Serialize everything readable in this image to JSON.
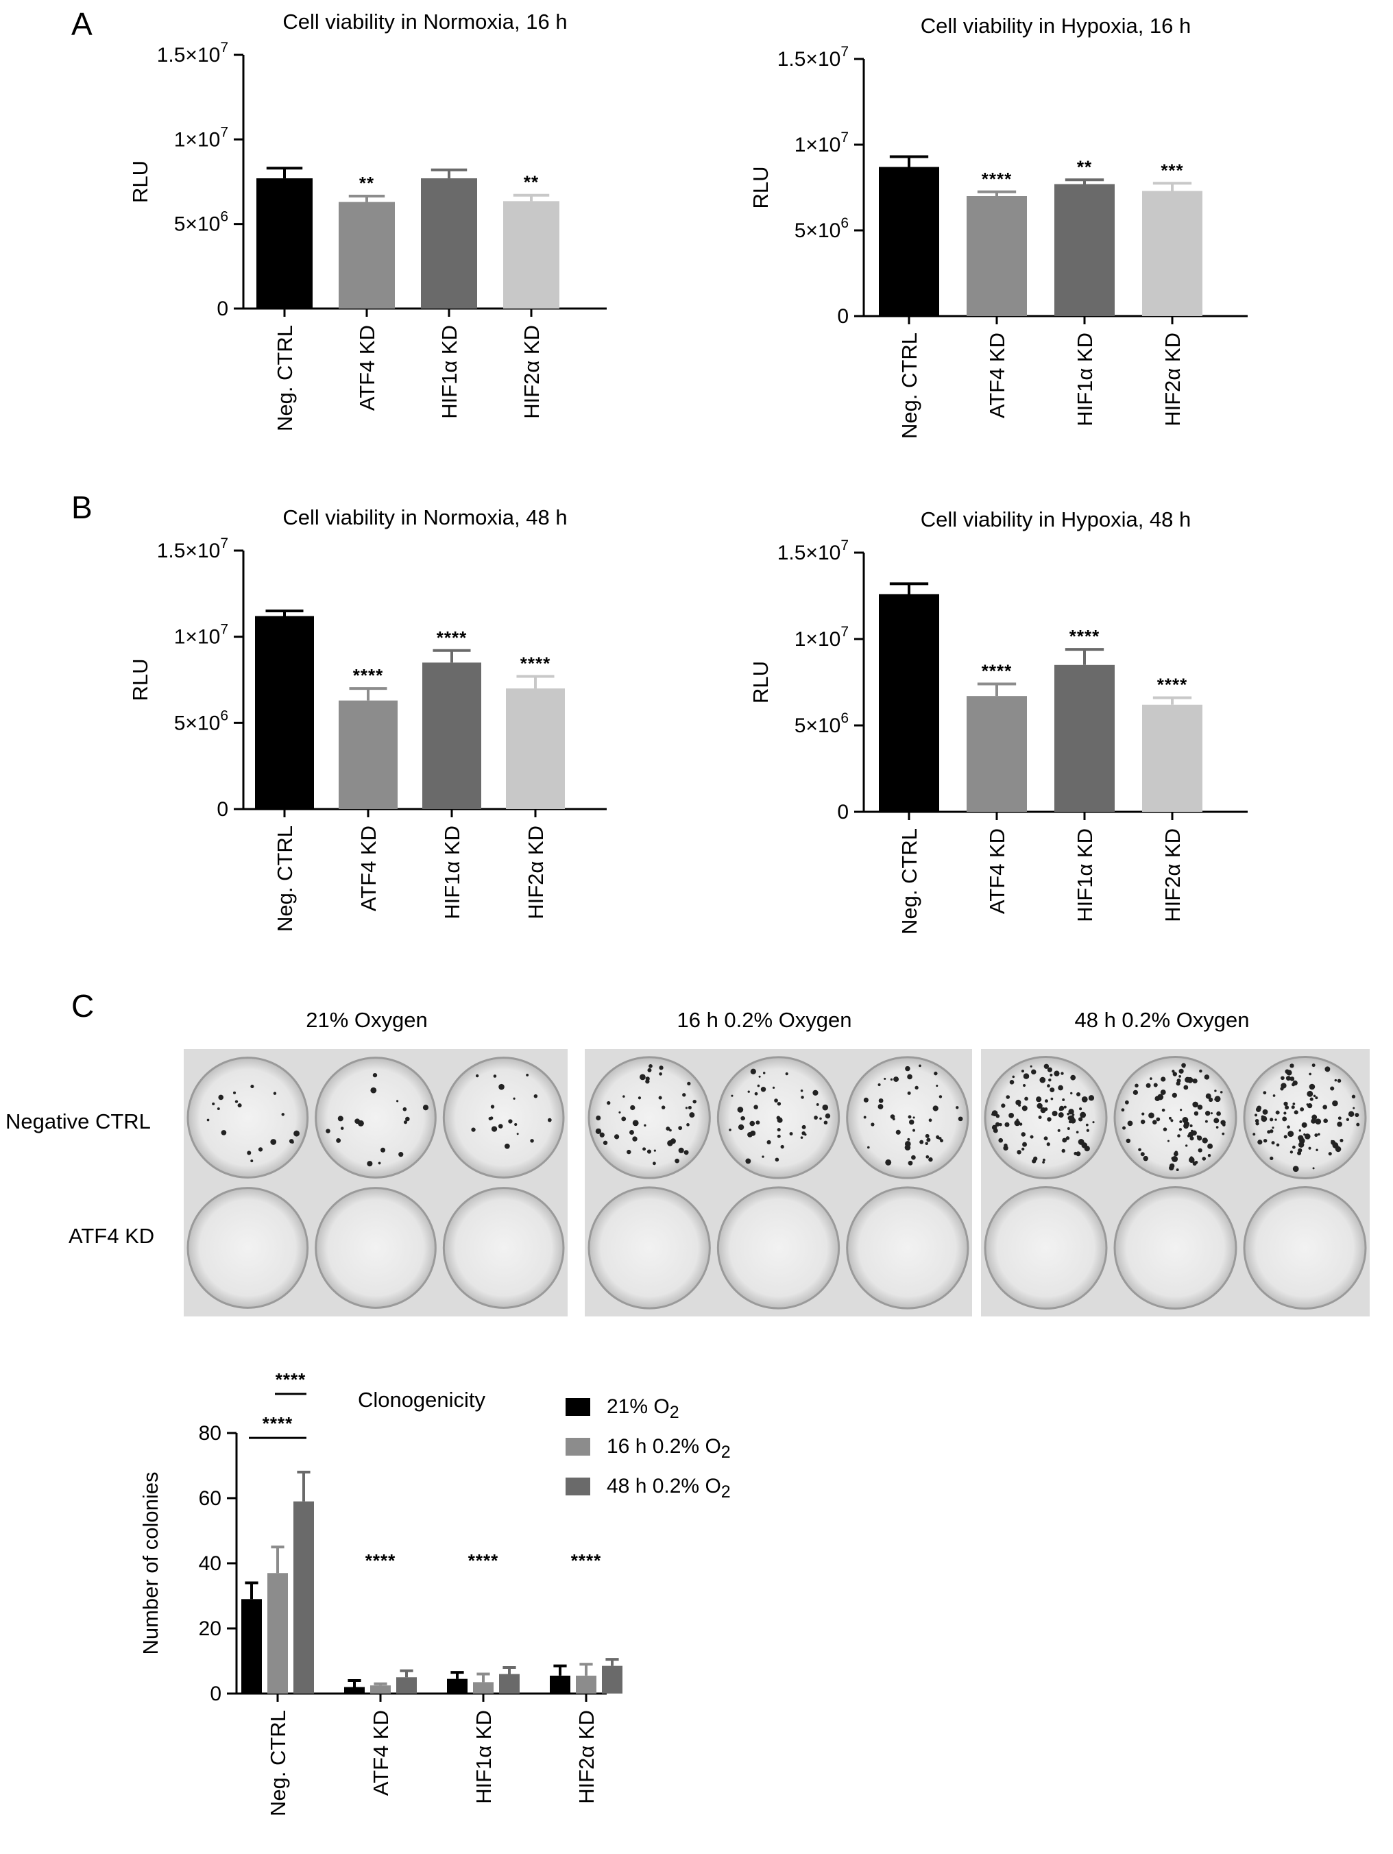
{
  "panels": {
    "A": "A",
    "B": "B",
    "C": "C"
  },
  "chart_data": [
    {
      "id": "a-normoxia",
      "type": "bar",
      "title": "Cell viability in Normoxia, 16 h",
      "ylabel": "RLU",
      "xlabel": "",
      "ylim": [
        0,
        15000000
      ],
      "yticks": [
        {
          "v": 0,
          "base": "0",
          "exp": ""
        },
        {
          "v": 5000000,
          "base": "5×10",
          "exp": "6"
        },
        {
          "v": 10000000,
          "base": "1×10",
          "exp": "7"
        },
        {
          "v": 15000000,
          "base": "1.5×10",
          "exp": "7"
        }
      ],
      "categories": [
        "Neg. CTRL",
        "ATF4 KD",
        "HIF1α KD",
        "HIF2α KD"
      ],
      "values": [
        7700000,
        6300000,
        7700000,
        6350000
      ],
      "errors": [
        600000,
        350000,
        500000,
        350000
      ],
      "significance": [
        "",
        "**",
        "",
        "**"
      ],
      "colors": [
        "#000000",
        "#8c8c8c",
        "#6a6a6a",
        "#c8c8c8"
      ]
    },
    {
      "id": "a-hypoxia",
      "type": "bar",
      "title": "Cell viability in Hypoxia, 16 h",
      "ylabel": "RLU",
      "xlabel": "",
      "ylim": [
        0,
        15000000
      ],
      "yticks": [
        {
          "v": 0,
          "base": "0",
          "exp": ""
        },
        {
          "v": 5000000,
          "base": "5×10",
          "exp": "6"
        },
        {
          "v": 10000000,
          "base": "1×10",
          "exp": "7"
        },
        {
          "v": 15000000,
          "base": "1.5×10",
          "exp": "7"
        }
      ],
      "categories": [
        "Neg. CTRL",
        "ATF4 KD",
        "HIF1α KD",
        "HIF2α KD"
      ],
      "values": [
        8700000,
        7000000,
        7700000,
        7300000
      ],
      "errors": [
        600000,
        250000,
        250000,
        450000
      ],
      "significance": [
        "",
        "****",
        "**",
        "***"
      ],
      "colors": [
        "#000000",
        "#8c8c8c",
        "#6a6a6a",
        "#c8c8c8"
      ]
    },
    {
      "id": "b-normoxia",
      "type": "bar",
      "title": "Cell viability in Normoxia, 48 h",
      "ylabel": "RLU",
      "xlabel": "",
      "ylim": [
        0,
        15000000
      ],
      "yticks": [
        {
          "v": 0,
          "base": "0",
          "exp": ""
        },
        {
          "v": 5000000,
          "base": "5×10",
          "exp": "6"
        },
        {
          "v": 10000000,
          "base": "1×10",
          "exp": "7"
        },
        {
          "v": 15000000,
          "base": "1.5×10",
          "exp": "7"
        }
      ],
      "categories": [
        "Neg. CTRL",
        "ATF4 KD",
        "HIF1α KD",
        "HIF2α KD"
      ],
      "values": [
        11200000,
        6300000,
        8500000,
        7000000
      ],
      "errors": [
        300000,
        700000,
        700000,
        700000
      ],
      "significance": [
        "",
        "****",
        "****",
        "****"
      ],
      "colors": [
        "#000000",
        "#8c8c8c",
        "#6a6a6a",
        "#c8c8c8"
      ]
    },
    {
      "id": "b-hypoxia",
      "type": "bar",
      "title": "Cell viability in Hypoxia, 48 h",
      "ylabel": "RLU",
      "xlabel": "",
      "ylim": [
        0,
        15000000
      ],
      "yticks": [
        {
          "v": 0,
          "base": "0",
          "exp": ""
        },
        {
          "v": 5000000,
          "base": "5×10",
          "exp": "6"
        },
        {
          "v": 10000000,
          "base": "1×10",
          "exp": "7"
        },
        {
          "v": 15000000,
          "base": "1.5×10",
          "exp": "7"
        }
      ],
      "categories": [
        "Neg. CTRL",
        "ATF4 KD",
        "HIF1α KD",
        "HIF2α KD"
      ],
      "values": [
        12600000,
        6700000,
        8500000,
        6200000
      ],
      "errors": [
        600000,
        700000,
        900000,
        400000
      ],
      "significance": [
        "",
        "****",
        "****",
        "****"
      ],
      "colors": [
        "#000000",
        "#8c8c8c",
        "#6a6a6a",
        "#c8c8c8"
      ]
    },
    {
      "id": "c-clonogenicity",
      "type": "bar",
      "title": "Clonogenicity",
      "ylabel": "Number of colonies",
      "xlabel": "",
      "ylim": [
        0,
        80
      ],
      "yticks": [
        {
          "v": 0,
          "base": "0",
          "exp": ""
        },
        {
          "v": 20,
          "base": "20",
          "exp": ""
        },
        {
          "v": 40,
          "base": "40",
          "exp": ""
        },
        {
          "v": 60,
          "base": "60",
          "exp": ""
        },
        {
          "v": 80,
          "base": "80",
          "exp": ""
        }
      ],
      "categories": [
        "Neg. CTRL",
        "ATF4 KD",
        "HIF1α KD",
        "HIF2α KD"
      ],
      "series": [
        {
          "name": "21% O",
          "sub": "2",
          "color": "#000000",
          "values": [
            29,
            2,
            4.5,
            5.5
          ],
          "errors": [
            5,
            2,
            2,
            3
          ]
        },
        {
          "name": "16 h 0.2% O",
          "sub": "2",
          "color": "#8c8c8c",
          "values": [
            37,
            2.5,
            3.5,
            5.5
          ],
          "errors": [
            8,
            0.5,
            2.5,
            3.5
          ]
        },
        {
          "name": "48 h 0.2% O",
          "sub": "2",
          "color": "#6a6a6a",
          "values": [
            59,
            5,
            6,
            8.5
          ],
          "errors": [
            9,
            2,
            2,
            2
          ]
        }
      ],
      "significance": [
        "",
        "****",
        "****",
        "****"
      ],
      "brackets": [
        {
          "label": "****",
          "from": 0,
          "to": 2
        },
        {
          "label": "****",
          "from": 1,
          "to": 2
        }
      ]
    }
  ],
  "photos": {
    "titles": [
      "21% Oxygen",
      "16 h 0.2% Oxygen",
      "48 h 0.2% Oxygen"
    ],
    "row_labels": [
      "Negative CTRL",
      "ATF4 KD"
    ]
  }
}
